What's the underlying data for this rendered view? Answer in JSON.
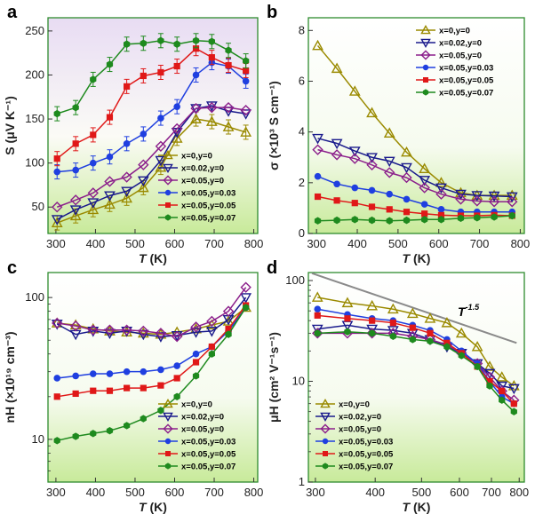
{
  "figure": {
    "labels": [
      "a",
      "b",
      "c",
      "d"
    ]
  },
  "series_styles": [
    {
      "name": "x=0,y=0",
      "color": "#9a8a00",
      "marker": "triangle-up-open"
    },
    {
      "name": "x=0.02,y=0",
      "color": "#1a1a8c",
      "marker": "triangle-down-open"
    },
    {
      "name": "x=0.05,y=0",
      "color": "#8b1f8b",
      "marker": "diamond-open"
    },
    {
      "name": "x=0.05,y=0.03",
      "color": "#1f3fe0",
      "marker": "circle-filled"
    },
    {
      "name": "x=0.05,y=0.05",
      "color": "#e01818",
      "marker": "square-filled"
    },
    {
      "name": "x=0.05,y=0.07",
      "color": "#1e8a1e",
      "marker": "hexagon-filled"
    }
  ],
  "chart_data": [
    {
      "panel": "a",
      "type": "line",
      "xlabel": "T (K)",
      "ylabel": "S (μV K⁻¹)",
      "xlim": [
        280,
        810
      ],
      "ylim": [
        20,
        265
      ],
      "scale": "linear",
      "xticks": [
        300,
        400,
        500,
        600,
        700,
        800
      ],
      "yticks": [
        50,
        100,
        150,
        200,
        250
      ],
      "background_top": "#e8dcf3",
      "background_bottom": "#c8ea9a",
      "legend_position": "bottom-right",
      "x": [
        303,
        350,
        394,
        436,
        479,
        521,
        565,
        606,
        654,
        694,
        736,
        780
      ],
      "series": [
        {
          "name": "x=0,y=0",
          "values": [
            32,
            40,
            47,
            53,
            60,
            72,
            95,
            128,
            150,
            147,
            141,
            135
          ],
          "error_bars": true
        },
        {
          "name": "x=0.02,y=0",
          "values": [
            36,
            47,
            55,
            63,
            68,
            80,
            103,
            135,
            162,
            165,
            159,
            156
          ]
        },
        {
          "name": "x=0.05,y=0",
          "values": [
            50,
            58,
            66,
            79,
            84,
            98,
            119,
            139,
            162,
            163,
            163,
            160
          ]
        },
        {
          "name": "x=0.05,y=0.03",
          "values": [
            90,
            92,
            100,
            107,
            122,
            133,
            151,
            164,
            200,
            214,
            210,
            193
          ],
          "error_bars": true
        },
        {
          "name": "x=0.05,y=0.05",
          "values": [
            105,
            122,
            132,
            152,
            187,
            199,
            203,
            210,
            230,
            220,
            211,
            205
          ],
          "error_bars": true
        },
        {
          "name": "x=0.05,y=0.07",
          "values": [
            156,
            163,
            195,
            212,
            235,
            236,
            239,
            235,
            239,
            238,
            228,
            216
          ],
          "error_bars": true
        }
      ]
    },
    {
      "panel": "b",
      "type": "line",
      "xlabel": "T (K)",
      "ylabel": "σ (×10³ S cm⁻¹)",
      "xlim": [
        280,
        810
      ],
      "ylim": [
        0,
        8.5
      ],
      "scale": "linear",
      "xticks": [
        300,
        400,
        500,
        600,
        700,
        800
      ],
      "yticks": [
        0,
        2,
        4,
        6,
        8
      ],
      "background_top": "#ffffff",
      "background_bottom": "#c8ea9a",
      "legend_position": "top-right",
      "x": [
        303,
        350,
        394,
        436,
        479,
        521,
        565,
        606,
        654,
        694,
        736,
        780
      ],
      "series": [
        {
          "name": "x=0,y=0",
          "values": [
            7.4,
            6.5,
            5.6,
            4.75,
            3.95,
            3.2,
            2.55,
            2.0,
            1.6,
            1.5,
            1.5,
            1.5
          ]
        },
        {
          "name": "x=0.02,y=0",
          "values": [
            3.75,
            3.55,
            3.25,
            3.0,
            2.85,
            2.6,
            2.1,
            1.8,
            1.55,
            1.5,
            1.48,
            1.45
          ]
        },
        {
          "name": "x=0.05,y=0",
          "values": [
            3.3,
            3.1,
            2.95,
            2.7,
            2.4,
            2.2,
            1.8,
            1.55,
            1.35,
            1.28,
            1.25,
            1.25
          ]
        },
        {
          "name": "x=0.05,y=0.03",
          "values": [
            2.25,
            1.95,
            1.8,
            1.7,
            1.55,
            1.35,
            1.15,
            0.95,
            0.85,
            0.85,
            0.85,
            0.85
          ]
        },
        {
          "name": "x=0.05,y=0.05",
          "values": [
            1.45,
            1.3,
            1.2,
            1.05,
            0.95,
            0.85,
            0.78,
            0.72,
            0.7,
            0.7,
            0.72,
            0.7
          ]
        },
        {
          "name": "x=0.05,y=0.07",
          "values": [
            0.5,
            0.52,
            0.55,
            0.52,
            0.5,
            0.52,
            0.55,
            0.55,
            0.6,
            0.62,
            0.65,
            0.7
          ]
        }
      ]
    },
    {
      "panel": "c",
      "type": "line",
      "xlabel": "T (K)",
      "ylabel": "nH (×10¹⁹ cm⁻³)",
      "xlim": [
        280,
        810
      ],
      "ylim": [
        5,
        150
      ],
      "scale": "log",
      "xticks": [
        300,
        400,
        500,
        600,
        700,
        800
      ],
      "yticks": [
        10,
        100
      ],
      "background_top": "#ffffff",
      "background_bottom": "#c8ea9a",
      "legend_position": "bottom-right",
      "x": [
        303,
        350,
        394,
        436,
        479,
        521,
        565,
        606,
        654,
        694,
        736,
        780
      ],
      "series": [
        {
          "name": "x=0,y=0",
          "values": [
            66,
            64,
            60,
            58,
            57,
            56,
            55,
            57,
            60,
            64,
            68,
            85
          ]
        },
        {
          "name": "x=0.02,y=0",
          "values": [
            65,
            55,
            58,
            56,
            58,
            55,
            53,
            54,
            57,
            58,
            70,
            100
          ]
        },
        {
          "name": "x=0.05,y=0",
          "values": [
            66,
            63,
            59,
            59,
            59,
            58,
            56,
            53,
            62,
            68,
            80,
            118
          ]
        },
        {
          "name": "x=0.05,y=0.03",
          "values": [
            27,
            28,
            29,
            29,
            30,
            30,
            31,
            33,
            40,
            45,
            58,
            85
          ]
        },
        {
          "name": "x=0.05,y=0.05",
          "values": [
            20,
            21,
            22,
            22,
            23,
            23,
            24,
            27,
            35,
            45,
            60,
            88
          ]
        },
        {
          "name": "x=0.05,y=0.07",
          "values": [
            9.8,
            10.5,
            11,
            11.5,
            12.5,
            14,
            16,
            20,
            28,
            40,
            55,
            85
          ]
        }
      ]
    },
    {
      "panel": "d",
      "type": "line",
      "xlabel": "T (K)",
      "ylabel": "μH (cm² V⁻¹s⁻¹)",
      "xlim": [
        290,
        820
      ],
      "ylim": [
        1,
        120
      ],
      "scale": "log-log",
      "xticks": [
        300,
        400,
        500,
        600,
        700,
        800
      ],
      "xtick_labels": [
        "300",
        "400",
        "500",
        "600",
        "700",
        "800"
      ],
      "yticks": [
        1,
        10,
        100
      ],
      "background_top": "#ffffff",
      "background_bottom": "#c8ea9a",
      "legend_position": "bottom-left",
      "annotation": {
        "text": "T",
        "superscript": "-1.5"
      },
      "reference_line": {
        "x": [
          295,
          790
        ],
        "y": [
          118,
          24
        ]
      },
      "x": [
        303,
        350,
        394,
        436,
        479,
        521,
        565,
        606,
        654,
        694,
        736,
        780
      ],
      "series": [
        {
          "name": "x=0,y=0",
          "values": [
            68,
            60,
            56,
            52,
            47,
            42,
            38,
            30,
            22,
            14,
            11,
            9
          ]
        },
        {
          "name": "x=0.02,y=0",
          "values": [
            33,
            36,
            33,
            32,
            30,
            26,
            22,
            19,
            15,
            12,
            9,
            8.5
          ]
        },
        {
          "name": "x=0.05,y=0",
          "values": [
            30,
            30,
            30,
            30,
            28,
            26,
            23,
            19,
            15,
            11,
            8,
            6.5
          ]
        },
        {
          "name": "x=0.05,y=0.03",
          "values": [
            52,
            46,
            42,
            40,
            36,
            32,
            26,
            20,
            15,
            10,
            7,
            6
          ]
        },
        {
          "name": "x=0.05,y=0.05",
          "values": [
            45,
            42,
            40,
            38,
            34,
            30,
            24,
            19,
            14,
            10,
            8,
            6
          ]
        },
        {
          "name": "x=0.05,y=0.07",
          "values": [
            30,
            31,
            30,
            28,
            26,
            25,
            22,
            18,
            14,
            9,
            6.5,
            5
          ]
        }
      ]
    }
  ]
}
